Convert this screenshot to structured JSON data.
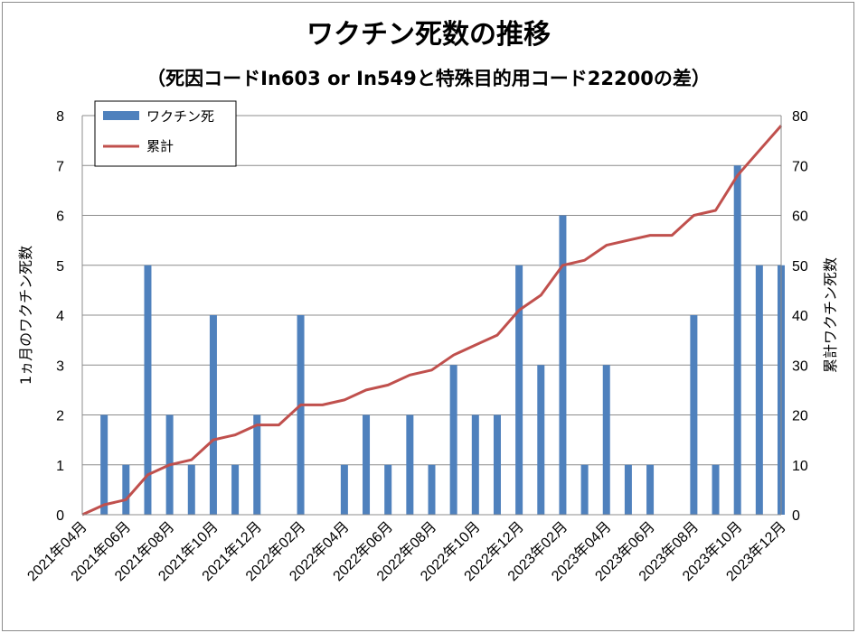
{
  "chart_data": {
    "type": "bar",
    "title": "ワクチン死数の推移",
    "subtitle": "（死因コードIn603 or In549と特殊目的用コード22200の差）",
    "ylabel": "1ヵ月のワクチン死数",
    "y2label": "累計ワクチン死数",
    "xlabel": "",
    "ylim": [
      0,
      8
    ],
    "y2lim": [
      0,
      80
    ],
    "yticks": [
      "0",
      "1",
      "2",
      "3",
      "4",
      "5",
      "6",
      "7",
      "8"
    ],
    "y2ticks": [
      "0",
      "10",
      "20",
      "30",
      "40",
      "50",
      "60",
      "70",
      "80"
    ],
    "grid": true,
    "legend_position": "top-left",
    "colors": {
      "bar": "#4f81bd",
      "line": "#c0504d",
      "grid": "#8c8c8c"
    },
    "categories": [
      "2021年04月",
      "2021年05月",
      "2021年06月",
      "2021年07月",
      "2021年08月",
      "2021年09月",
      "2021年10月",
      "2021年11月",
      "2021年12月",
      "2022年01月",
      "2022年02月",
      "2022年03月",
      "2022年04月",
      "2022年05月",
      "2022年06月",
      "2022年07月",
      "2022年08月",
      "2022年09月",
      "2022年10月",
      "2022年11月",
      "2022年12月",
      "2023年01月",
      "2023年02月",
      "2023年03月",
      "2023年04月",
      "2023年05月",
      "2023年06月",
      "2023年07月",
      "2023年08月",
      "2023年09月",
      "2023年10月",
      "2023年11月",
      "2023年12月"
    ],
    "xtick_labels": [
      "2021年04月",
      "2021年06月",
      "2021年08月",
      "2021年10月",
      "2021年12月",
      "2022年02月",
      "2022年04月",
      "2022年06月",
      "2022年08月",
      "2022年10月",
      "2022年12月",
      "2023年02月",
      "2023年04月",
      "2023年06月",
      "2023年08月",
      "2023年10月",
      "2023年12月"
    ],
    "series": [
      {
        "name": "ワクチン死",
        "type": "bar",
        "axis": "left",
        "values": [
          0,
          2,
          1,
          5,
          2,
          1,
          4,
          1,
          2,
          0,
          4,
          0,
          1,
          2,
          1,
          2,
          1,
          3,
          2,
          2,
          5,
          3,
          6,
          1,
          3,
          1,
          1,
          0,
          4,
          1,
          7,
          5,
          5
        ]
      },
      {
        "name": "累計",
        "type": "line",
        "axis": "right",
        "values": [
          0,
          2,
          3,
          8,
          10,
          11,
          15,
          16,
          18,
          18,
          22,
          22,
          23,
          25,
          26,
          28,
          29,
          32,
          34,
          36,
          41,
          44,
          50,
          51,
          54,
          55,
          56,
          56,
          60,
          61,
          68,
          73,
          78
        ]
      }
    ]
  }
}
